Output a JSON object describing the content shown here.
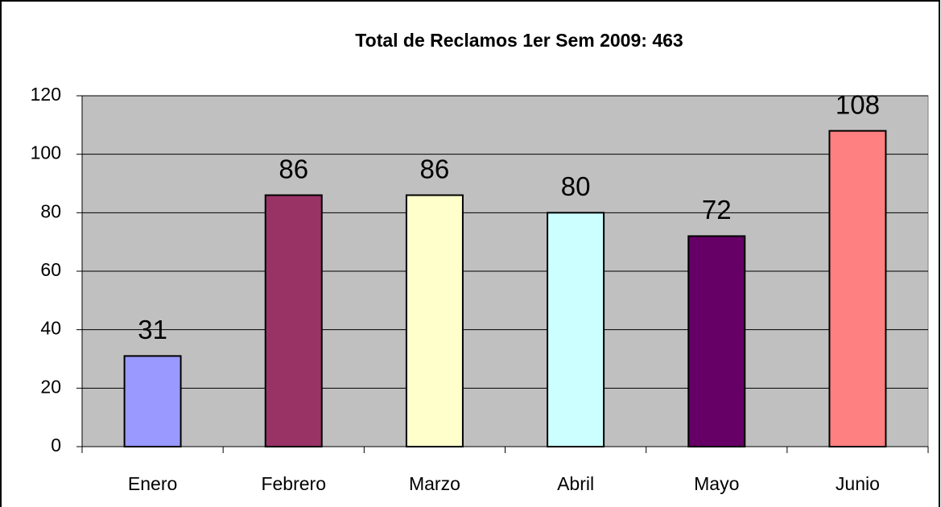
{
  "chart_data": {
    "type": "bar",
    "title": "Total de Reclamos 1er Sem 2009: 463",
    "categories": [
      "Enero",
      "Febrero",
      "Marzo",
      "Abril",
      "Mayo",
      "Junio"
    ],
    "values": [
      31,
      86,
      86,
      80,
      72,
      108
    ],
    "colors": [
      "#9999ff",
      "#993366",
      "#ffffcc",
      "#ccffff",
      "#660066",
      "#ff8080"
    ],
    "ylim": [
      0,
      120
    ],
    "yticks": [
      0,
      20,
      40,
      60,
      80,
      100,
      120
    ],
    "grid": true,
    "plot_background": "#c0c0c0"
  }
}
